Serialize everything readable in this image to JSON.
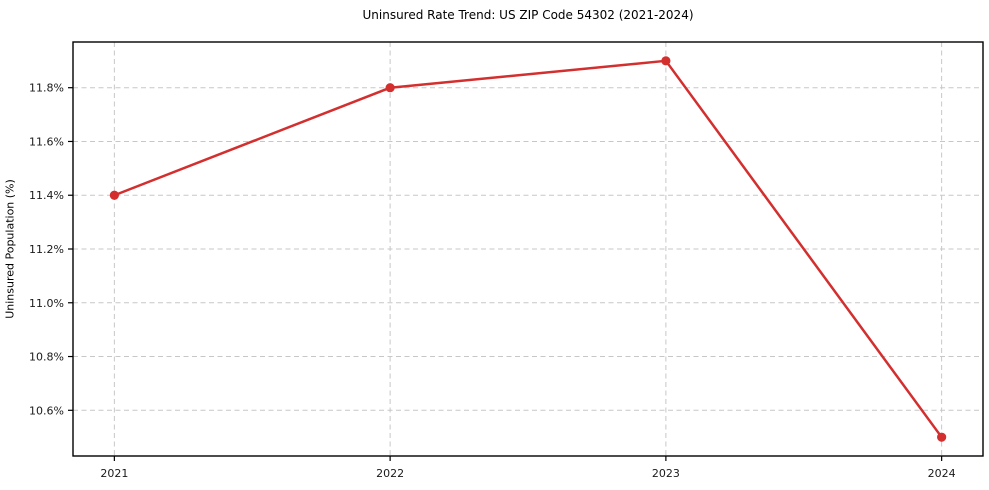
{
  "chart_data": {
    "type": "line",
    "title": "Uninsured Rate Trend: US ZIP Code 54302 (2021-2024)",
    "xlabel": "",
    "ylabel": "Uninsured Population (%)",
    "x": [
      2021,
      2022,
      2023,
      2024
    ],
    "x_tick_labels": [
      "2021",
      "2022",
      "2023",
      "2024"
    ],
    "series": [
      {
        "name": "Uninsured Population (%)",
        "values": [
          11.4,
          11.8,
          11.9,
          10.5
        ]
      }
    ],
    "y_ticks": [
      10.6,
      10.8,
      11.0,
      11.2,
      11.4,
      11.6,
      11.8
    ],
    "y_tick_labels": [
      "10.6%",
      "10.8%",
      "11.0%",
      "11.2%",
      "11.4%",
      "11.6%",
      "11.8%"
    ],
    "ylim": [
      10.43,
      11.97
    ],
    "xlim": [
      2020.85,
      2024.15
    ],
    "grid": true,
    "grid_style": "dashed",
    "legend": "none",
    "colors": {
      "line": "#d32f2f",
      "marker": "#d32f2f",
      "grid": "#c7c7c7",
      "frame": "#000000",
      "text": "#1a1a1a",
      "background": "#ffffff"
    }
  }
}
